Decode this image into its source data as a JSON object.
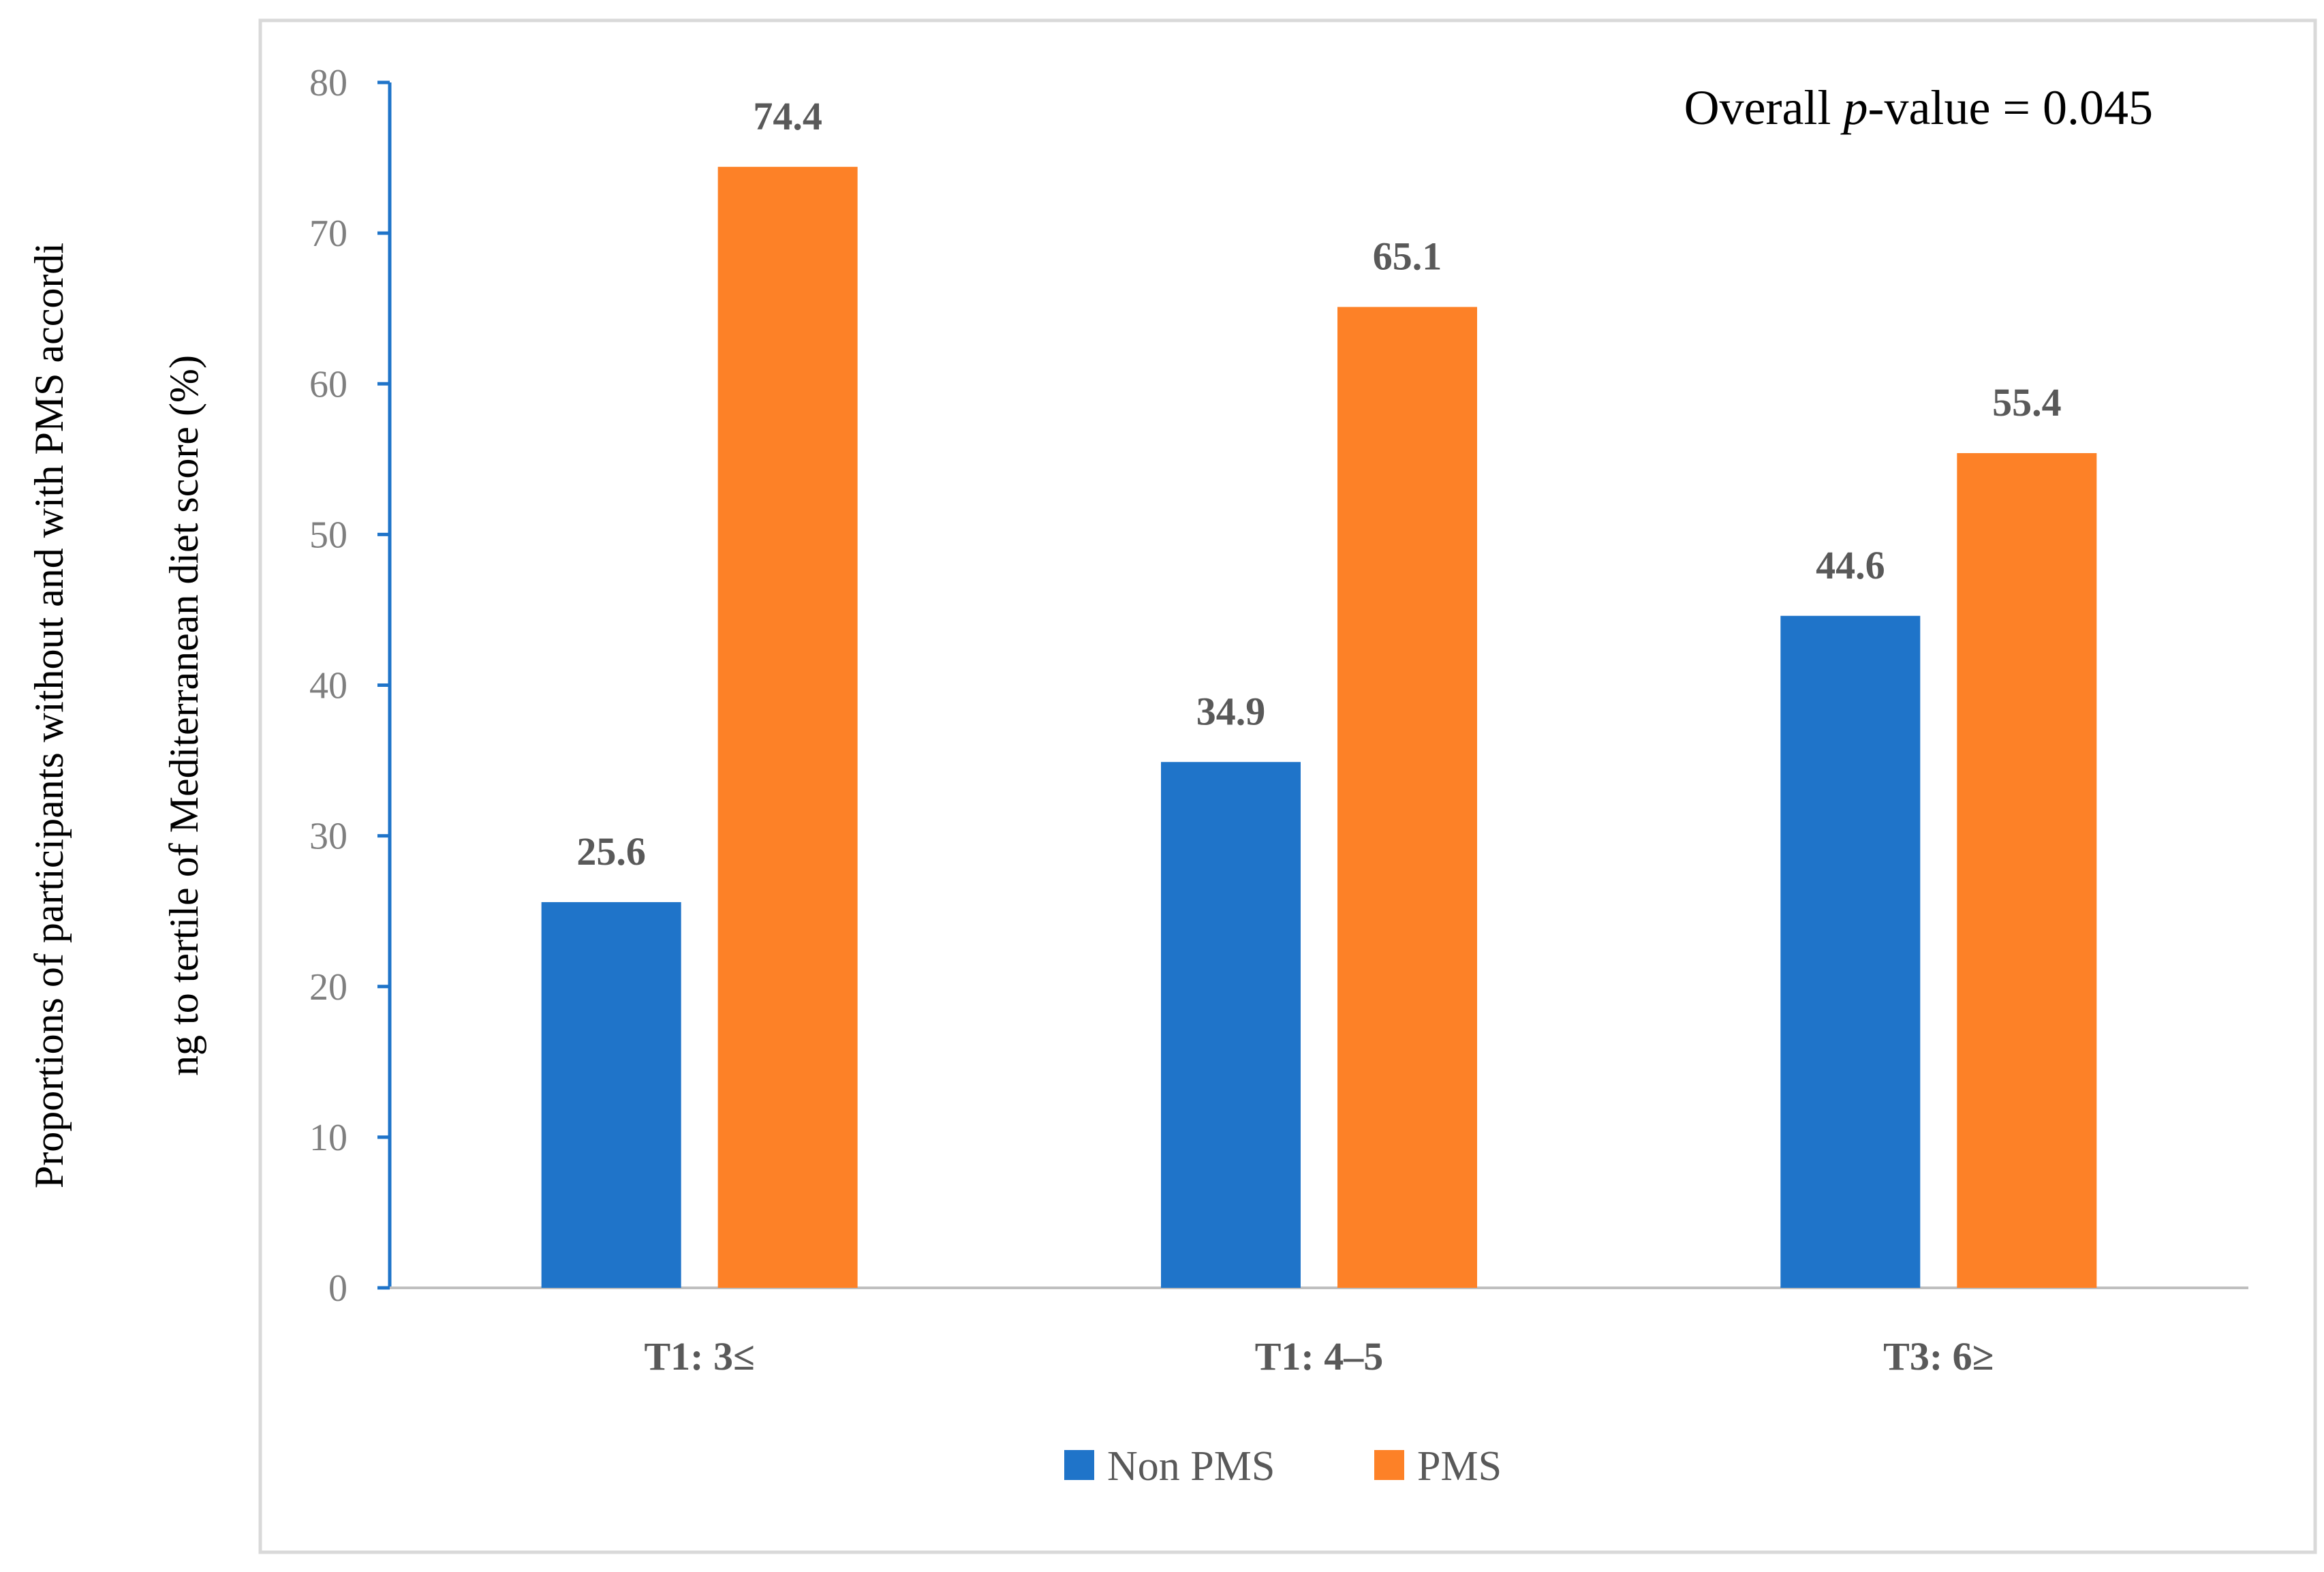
{
  "chart_data": {
    "type": "bar",
    "categories": [
      "T1: 3≤",
      "T1: 4–5",
      "T3: 6≥"
    ],
    "series": [
      {
        "name": "Non PMS",
        "values": [
          25.6,
          34.9,
          44.6
        ],
        "color": "#1f74c9"
      },
      {
        "name": "PMS",
        "values": [
          74.4,
          65.1,
          55.4
        ],
        "color": "#fd8127"
      }
    ],
    "data_labels": [
      [
        "25.6",
        "34.9",
        "44.6"
      ],
      [
        "74.4",
        "65.1",
        "55.4"
      ]
    ],
    "ylabel_line1": "Proportions of participants without and with PMS accordi",
    "ylabel_line2": "ng to tertile of Mediterranean diet score (%)",
    "annotation": {
      "prefix": "Overall ",
      "italic": "p",
      "suffix": "-value = 0.045"
    },
    "ylim": [
      0,
      80
    ],
    "yticks": [
      0,
      10,
      20,
      30,
      40,
      50,
      60,
      70,
      80
    ],
    "grid": false,
    "legend_position": "bottom",
    "axis_color": "#1f74c9",
    "frame_color": "#d9d9d9"
  }
}
